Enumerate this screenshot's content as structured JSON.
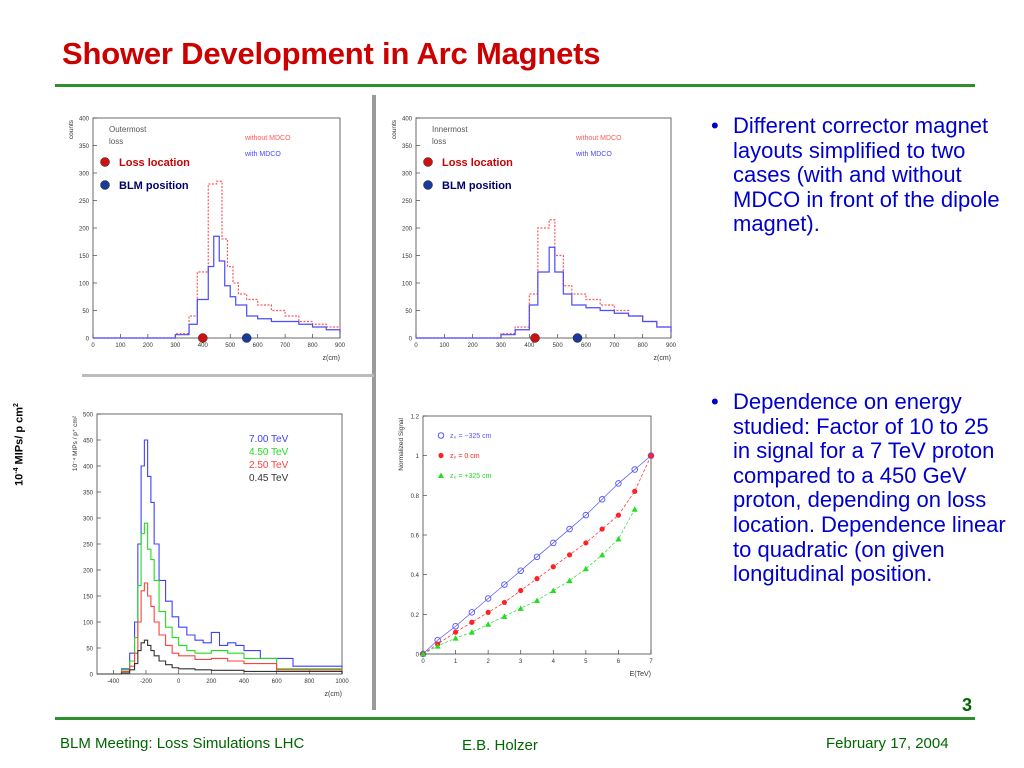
{
  "slide": {
    "title": "Shower Development in Arc Magnets",
    "page_number": "3",
    "footer": {
      "left": "BLM Meeting: Loss Simulations LHC",
      "center": "E.B. Holzer",
      "right": "February 17, 2004"
    },
    "bottom_ylabel": "10-4 MIPs/ p cm2"
  },
  "bullets": [
    "Different corrector magnet layouts simplified to two cases (with and without MDCO in front of the dipole magnet).",
    "Dependence on energy studied: Factor of 10 to 25 in signal for a 7 TeV proton compared to a 450 GeV proton, depending on loss location. Dependence linear to quadratic (on given longitudinal position."
  ],
  "chart_data": [
    {
      "type": "line",
      "ylabel": "counts",
      "xlabel": "z(cm)",
      "label_lines": [
        "Outermost",
        "loss"
      ],
      "xlim": [
        0,
        900
      ],
      "ylim": [
        0,
        400
      ],
      "xticks": [
        0,
        100,
        200,
        300,
        400,
        500,
        600,
        700,
        800,
        900
      ],
      "yticks": [
        0,
        50,
        100,
        150,
        200,
        250,
        300,
        350,
        400
      ],
      "legend": [
        {
          "text": "without MDCO",
          "color": "#ff5a5a"
        },
        {
          "text": "with MDCO",
          "color": "#4a4aff"
        }
      ],
      "markers": [
        {
          "text": "Loss location",
          "color": "#cc0000",
          "marker_color": "#cc1111",
          "x": 400
        },
        {
          "text": "BLM position",
          "color": "#000066",
          "marker_color": "#1a3a9a",
          "x": 560
        }
      ],
      "series": [
        {
          "name": "without MDCO",
          "color": "#ff5a5a",
          "dashed": true,
          "x": [
            0,
            200,
            300,
            350,
            380,
            420,
            450,
            470,
            490,
            510,
            530,
            560,
            600,
            650,
            700,
            750,
            800,
            850,
            900
          ],
          "y": [
            0,
            0,
            8,
            40,
            120,
            280,
            285,
            180,
            130,
            100,
            80,
            70,
            60,
            50,
            40,
            30,
            25,
            20,
            10
          ]
        },
        {
          "name": "with MDCO",
          "color": "#4a4aff",
          "dashed": false,
          "x": [
            0,
            200,
            300,
            350,
            380,
            420,
            440,
            460,
            480,
            500,
            520,
            560,
            600,
            650,
            700,
            750,
            800,
            850,
            900
          ],
          "y": [
            0,
            0,
            6,
            25,
            70,
            130,
            185,
            140,
            95,
            75,
            60,
            40,
            35,
            30,
            30,
            25,
            20,
            15,
            8
          ]
        }
      ]
    },
    {
      "type": "line",
      "ylabel": "counts",
      "xlabel": "z(cm)",
      "label_lines": [
        "Innermost",
        "loss"
      ],
      "xlim": [
        0,
        900
      ],
      "ylim": [
        0,
        400
      ],
      "xticks": [
        0,
        100,
        200,
        300,
        400,
        500,
        600,
        700,
        800,
        900
      ],
      "yticks": [
        0,
        50,
        100,
        150,
        200,
        250,
        300,
        350,
        400
      ],
      "legend": [
        {
          "text": "without MDCO",
          "color": "#ff5a5a"
        },
        {
          "text": "with MDCO",
          "color": "#4a4aff"
        }
      ],
      "markers": [
        {
          "text": "Loss location",
          "color": "#cc0000",
          "marker_color": "#cc1111",
          "x": 420
        },
        {
          "text": "BLM position",
          "color": "#000066",
          "marker_color": "#1a3a9a",
          "x": 570
        }
      ],
      "series": [
        {
          "name": "without MDCO",
          "color": "#ff5a5a",
          "dashed": true,
          "x": [
            0,
            200,
            300,
            350,
            400,
            430,
            470,
            490,
            520,
            550,
            600,
            650,
            700,
            750,
            800,
            850,
            900
          ],
          "y": [
            0,
            0,
            8,
            20,
            80,
            200,
            215,
            150,
            95,
            80,
            70,
            60,
            50,
            40,
            30,
            20,
            10
          ]
        },
        {
          "name": "with MDCO",
          "color": "#4a4aff",
          "dashed": false,
          "x": [
            0,
            200,
            300,
            350,
            400,
            430,
            470,
            490,
            520,
            550,
            600,
            650,
            700,
            750,
            800,
            850,
            900
          ],
          "y": [
            0,
            0,
            6,
            15,
            60,
            120,
            165,
            120,
            80,
            60,
            55,
            50,
            45,
            40,
            30,
            20,
            10
          ]
        }
      ]
    },
    {
      "type": "line",
      "ylabel": "10⁻⁴ MIPs / p⁺ cm²",
      "xlabel": "z(cm)",
      "xlim": [
        -500,
        1000
      ],
      "ylim": [
        0,
        500
      ],
      "xticks": [
        -400,
        -200,
        0,
        200,
        400,
        600,
        800,
        1000
      ],
      "yticks": [
        0,
        50,
        100,
        150,
        200,
        250,
        300,
        350,
        400,
        450,
        500
      ],
      "series": [
        {
          "name": "7.00 TeV",
          "color": "#4040ff",
          "x": [
            -500,
            -400,
            -350,
            -300,
            -270,
            -250,
            -230,
            -210,
            -190,
            -170,
            -150,
            -120,
            -80,
            -40,
            0,
            50,
            100,
            150,
            200,
            250,
            300,
            350,
            400,
            500,
            700,
            1000
          ],
          "y": [
            0,
            0,
            10,
            40,
            100,
            250,
            400,
            450,
            380,
            330,
            250,
            180,
            140,
            110,
            90,
            75,
            65,
            60,
            80,
            55,
            60,
            55,
            45,
            30,
            15,
            0
          ]
        },
        {
          "name": "4.50 TeV",
          "color": "#22dd22",
          "x": [
            -500,
            -400,
            -350,
            -300,
            -270,
            -250,
            -230,
            -210,
            -190,
            -170,
            -150,
            -120,
            -80,
            -40,
            0,
            50,
            100,
            200,
            300,
            400,
            600,
            1000
          ],
          "y": [
            0,
            0,
            8,
            25,
            70,
            170,
            270,
            290,
            240,
            220,
            180,
            120,
            90,
            70,
            55,
            45,
            40,
            45,
            40,
            30,
            10,
            0
          ]
        },
        {
          "name": "2.50 TeV",
          "color": "#ff4040",
          "x": [
            -500,
            -400,
            -350,
            -300,
            -270,
            -250,
            -230,
            -210,
            -190,
            -170,
            -150,
            -120,
            -80,
            -40,
            0,
            100,
            200,
            300,
            400,
            600,
            1000
          ],
          "y": [
            0,
            0,
            5,
            15,
            40,
            100,
            160,
            175,
            150,
            130,
            100,
            75,
            55,
            40,
            35,
            28,
            30,
            25,
            20,
            8,
            0
          ]
        },
        {
          "name": "0.45 TeV",
          "color": "#333333",
          "x": [
            -500,
            -400,
            -350,
            -300,
            -270,
            -250,
            -230,
            -210,
            -190,
            -170,
            -150,
            -120,
            -80,
            -40,
            0,
            100,
            200,
            400,
            1000
          ],
          "y": [
            0,
            0,
            2,
            8,
            20,
            45,
            60,
            65,
            55,
            45,
            35,
            25,
            18,
            12,
            10,
            8,
            7,
            5,
            0
          ]
        }
      ]
    },
    {
      "type": "scatter",
      "ylabel": "Normalized Signal",
      "xlabel": "E(TeV)",
      "xlim": [
        0,
        7
      ],
      "ylim": [
        0,
        1.2
      ],
      "xticks": [
        0,
        1,
        2,
        3,
        4,
        5,
        6,
        7
      ],
      "yticks": [
        0,
        0.2,
        0.4,
        0.6,
        0.8,
        1,
        1.2
      ],
      "series": [
        {
          "name": "z₀ = −325 cm",
          "color": "#5555ff",
          "marker": "circle-open",
          "x": [
            0,
            0.45,
            1,
            1.5,
            2,
            2.5,
            3,
            3.5,
            4,
            4.5,
            5,
            5.5,
            6,
            6.5,
            7
          ],
          "y": [
            0,
            0.07,
            0.14,
            0.21,
            0.28,
            0.35,
            0.42,
            0.49,
            0.56,
            0.63,
            0.7,
            0.78,
            0.86,
            0.93,
            1.0
          ]
        },
        {
          "name": "z₀ = 0 cm",
          "color": "#ff2222",
          "marker": "circle-filled",
          "x": [
            0,
            0.45,
            1,
            1.5,
            2,
            2.5,
            3,
            3.5,
            4,
            4.5,
            5,
            5.5,
            6,
            6.5,
            7
          ],
          "y": [
            0,
            0.05,
            0.11,
            0.16,
            0.21,
            0.26,
            0.32,
            0.38,
            0.44,
            0.5,
            0.56,
            0.63,
            0.7,
            0.82,
            1.0
          ]
        },
        {
          "name": "z₀ = +325 cm",
          "color": "#22dd22",
          "marker": "triangle",
          "x": [
            0,
            0.45,
            1,
            1.5,
            2,
            2.5,
            3,
            3.5,
            4,
            4.5,
            5,
            5.5,
            6,
            6.5
          ],
          "y": [
            0,
            0.04,
            0.08,
            0.11,
            0.15,
            0.19,
            0.23,
            0.27,
            0.32,
            0.37,
            0.43,
            0.5,
            0.58,
            0.73
          ]
        }
      ]
    }
  ]
}
